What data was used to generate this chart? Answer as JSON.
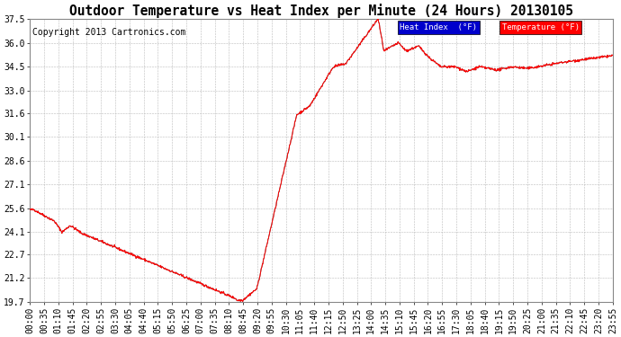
{
  "title": "Outdoor Temperature vs Heat Index per Minute (24 Hours) 20130105",
  "copyright": "Copyright 2013 Cartronics.com",
  "ylim": [
    19.7,
    37.5
  ],
  "yticks": [
    19.7,
    21.2,
    22.7,
    24.1,
    25.6,
    27.1,
    28.6,
    30.1,
    31.6,
    33.0,
    34.5,
    36.0,
    37.5
  ],
  "background_color": "#ffffff",
  "plot_bg_color": "#ffffff",
  "grid_color": "#bbbbbb",
  "line_color_temp": "#ff0000",
  "line_color_heat": "#666666",
  "legend_heat_bg": "#0000cc",
  "legend_temp_bg": "#ff0000",
  "title_fontsize": 10.5,
  "copyright_fontsize": 7,
  "tick_fontsize": 7,
  "xtick_labels": [
    "00:00",
    "00:35",
    "01:10",
    "01:45",
    "02:20",
    "02:55",
    "03:30",
    "04:05",
    "04:40",
    "05:15",
    "05:50",
    "06:25",
    "07:00",
    "07:35",
    "08:10",
    "08:45",
    "09:20",
    "09:55",
    "10:30",
    "11:05",
    "11:40",
    "12:15",
    "12:50",
    "13:25",
    "14:00",
    "14:35",
    "15:10",
    "15:45",
    "16:20",
    "16:55",
    "17:30",
    "18:05",
    "18:40",
    "19:15",
    "19:50",
    "20:25",
    "21:00",
    "21:35",
    "22:10",
    "22:45",
    "23:20",
    "23:55"
  ]
}
